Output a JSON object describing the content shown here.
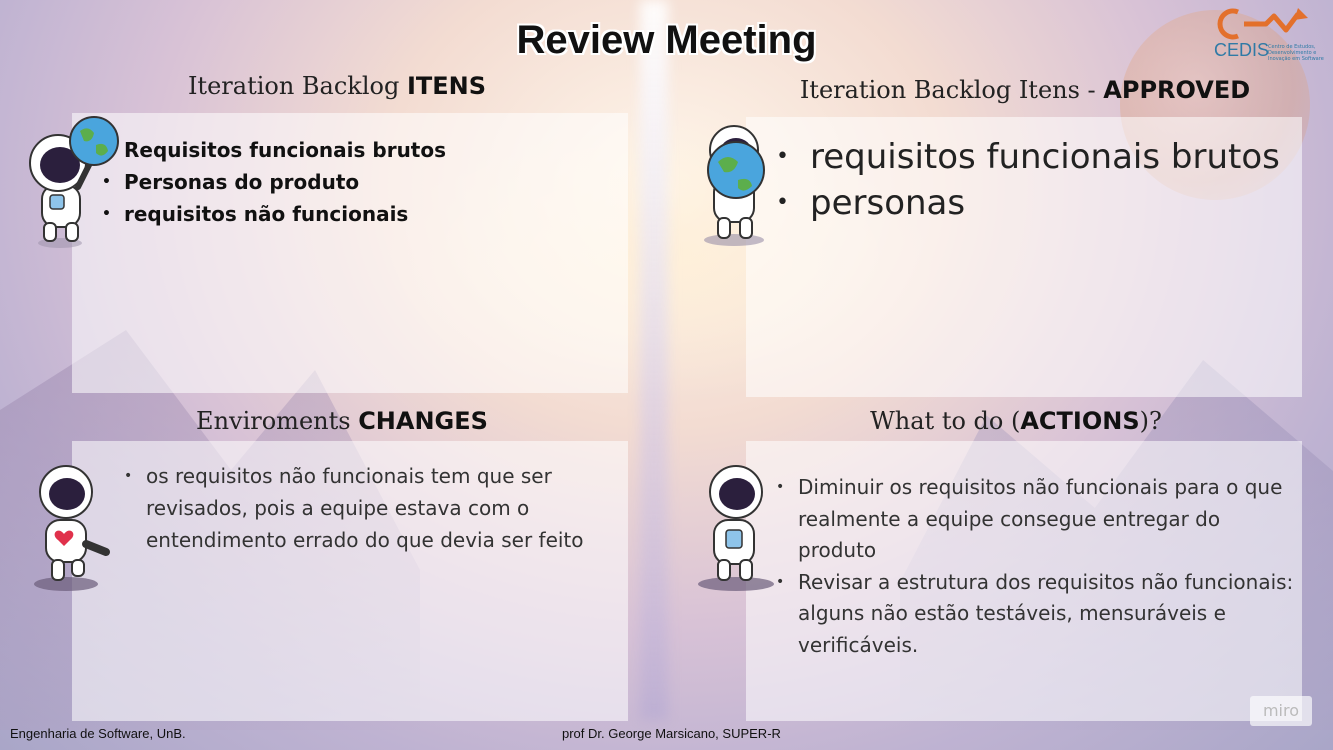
{
  "title": "Review Meeting",
  "logo": {
    "name": "CEDIS",
    "subtitle": "Centro de Estudos, Desenvolvimento e Inovação em Software",
    "colors": {
      "key": "#e3702b",
      "text": "#2f7aa6"
    }
  },
  "quadrants": {
    "backlog": {
      "title_normal": "Iteration Backlog ",
      "title_bold": "ITENS",
      "items": [
        "Requisitos funcionais brutos",
        "Personas do produto",
        "requisitos não funcionais"
      ]
    },
    "approved": {
      "title_normal": "Iteration Backlog Itens - ",
      "title_bold": "APPROVED",
      "items": [
        "requisitos funcionais brutos",
        "personas"
      ]
    },
    "changes": {
      "title_normal": "Enviroments ",
      "title_bold": "CHANGES",
      "items": [
        "os requisitos não funcionais tem que ser revisados, pois a equipe estava com o entendimento errado do que devia ser feito"
      ]
    },
    "actions": {
      "title_normal": "What to do (",
      "title_bold": "ACTIONS",
      "title_suffix": ")?",
      "items": [
        "Diminuir os requisitos não funcionais para o que realmente a equipe consegue entregar do produto",
        "Revisar a estrutura dos requisitos não funcionais: alguns não estão testáveis, mensuráveis e verificáveis."
      ]
    }
  },
  "footer": {
    "left": "Engenharia de Software, UnB.",
    "center": "prof Dr. George Marsicano, SUPER-R"
  },
  "watermark": "miro",
  "icons": [
    "astronaut-globe-icon",
    "astronaut-holding-globe-icon",
    "astronaut-heart-icon",
    "astronaut-waving-icon",
    "cedis-logo-icon"
  ]
}
